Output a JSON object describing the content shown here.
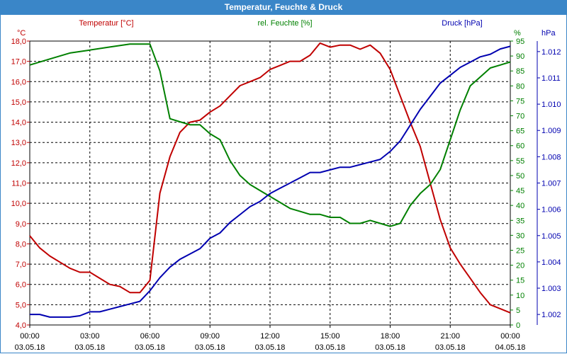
{
  "window": {
    "title": "Temperatur, Feuchte & Druck"
  },
  "colors": {
    "temperature": "#c00000",
    "humidity": "#008000",
    "pressure": "#0000b0",
    "title_bar": "#3a86c8",
    "grid": "#000000"
  },
  "chart_data": {
    "type": "line",
    "title": "Temperatur, Feuchte & Druck",
    "x_range": [
      "03.05.18 00:00",
      "04.05.18 00:00"
    ],
    "x_ticks": [
      {
        "time": "00:00",
        "date": "03.05.18"
      },
      {
        "time": "03:00",
        "date": "03.05.18"
      },
      {
        "time": "06:00",
        "date": "03.05.18"
      },
      {
        "time": "09:00",
        "date": "03.05.18"
      },
      {
        "time": "12:00",
        "date": "03.05.18"
      },
      {
        "time": "15:00",
        "date": "03.05.18"
      },
      {
        "time": "18:00",
        "date": "03.05.18"
      },
      {
        "time": "21:00",
        "date": "03.05.18"
      },
      {
        "time": "00:00",
        "date": "04.05.18"
      }
    ],
    "grid": true,
    "axes": {
      "temperature": {
        "label": "Temperatur [°C]",
        "unit": "°C",
        "position": "left",
        "range": [
          4.0,
          18.0
        ],
        "ticks": [
          "4,0",
          "5,0",
          "6,0",
          "7,0",
          "8,0",
          "9,0",
          "10,0",
          "11,0",
          "12,0",
          "13,0",
          "14,0",
          "15,0",
          "16,0",
          "17,0",
          "18,0"
        ]
      },
      "humidity": {
        "label": "rel. Feuchte [%]",
        "unit": "%",
        "position": "right",
        "range": [
          0,
          95
        ],
        "ticks": [
          "0",
          "5",
          "10",
          "15",
          "20",
          "25",
          "30",
          "35",
          "40",
          "45",
          "50",
          "55",
          "60",
          "65",
          "70",
          "75",
          "80",
          "85",
          "90",
          "95"
        ]
      },
      "pressure": {
        "label": "Druck [hPa]",
        "unit": "hPa",
        "position": "right-outer",
        "range": [
          1001.6,
          1012.4
        ],
        "ticks": [
          "1.002",
          "1.003",
          "1.004",
          "1.005",
          "1.006",
          "1.007",
          "1.008",
          "1.009",
          "1.010",
          "1.011",
          "1.012"
        ]
      }
    },
    "series": [
      {
        "name": "Temperatur [°C]",
        "axis": "temperature",
        "color": "#c00000",
        "x": [
          0,
          0.5,
          1,
          1.5,
          2,
          2.5,
          3,
          3.5,
          4,
          4.5,
          5,
          5.5,
          6,
          6.5,
          7,
          7.5,
          8,
          8.5,
          9,
          9.5,
          10,
          10.5,
          11,
          11.5,
          12,
          12.5,
          13,
          13.5,
          14,
          14.5,
          15,
          15.5,
          16,
          16.5,
          17,
          17.5,
          18,
          18.5,
          19,
          19.5,
          20,
          20.5,
          21,
          21.5,
          22,
          22.5,
          23,
          23.5,
          24
        ],
        "values": [
          8.4,
          7.8,
          7.4,
          7.1,
          6.8,
          6.6,
          6.6,
          6.3,
          6.0,
          5.9,
          5.6,
          5.6,
          6.2,
          10.5,
          12.3,
          13.5,
          14.0,
          14.1,
          14.5,
          14.8,
          15.3,
          15.8,
          16.0,
          16.2,
          16.6,
          16.8,
          17.0,
          17.0,
          17.3,
          17.9,
          17.7,
          17.8,
          17.8,
          17.6,
          17.8,
          17.4,
          16.6,
          15.3,
          14.0,
          12.8,
          11.0,
          9.2,
          7.8,
          7.0,
          6.3,
          5.6,
          5.0,
          4.8,
          4.6
        ]
      },
      {
        "name": "rel. Feuchte [%]",
        "axis": "humidity",
        "color": "#008000",
        "x": [
          0,
          1,
          2,
          3,
          4,
          5,
          6,
          6.5,
          7,
          7.5,
          8,
          8.5,
          9,
          9.5,
          10,
          10.5,
          11,
          11.5,
          12,
          12.5,
          13,
          13.5,
          14,
          14.5,
          15,
          15.5,
          16,
          16.5,
          17,
          17.5,
          18,
          18.5,
          19,
          19.5,
          20,
          20.5,
          21,
          21.5,
          22,
          22.5,
          23,
          23.5,
          24
        ],
        "values": [
          87,
          89,
          91,
          92,
          93,
          94,
          94,
          85,
          69,
          68,
          67,
          67,
          64,
          62,
          55,
          50,
          47,
          45,
          43,
          41,
          39,
          38,
          37,
          37,
          36,
          36,
          34,
          34,
          35,
          34,
          33,
          34,
          40,
          44,
          47,
          52,
          62,
          72,
          80,
          83,
          86,
          87,
          88
        ]
      },
      {
        "name": "Druck [hPa]",
        "axis": "pressure",
        "color": "#0000b0",
        "x": [
          0,
          0.5,
          1,
          1.5,
          2,
          2.5,
          3,
          3.5,
          4,
          4.5,
          5,
          5.5,
          6,
          6.5,
          7,
          7.5,
          8,
          8.5,
          9,
          9.5,
          10,
          10.5,
          11,
          11.5,
          12,
          12.5,
          13,
          13.5,
          14,
          14.5,
          15,
          15.5,
          16,
          16.5,
          17,
          17.5,
          18,
          18.5,
          19,
          19.5,
          20,
          20.5,
          21,
          21.5,
          22,
          22.5,
          23,
          23.5,
          24
        ],
        "values": [
          1002.0,
          1002.0,
          1001.9,
          1001.9,
          1001.9,
          1001.95,
          1002.1,
          1002.1,
          1002.2,
          1002.3,
          1002.4,
          1002.5,
          1002.9,
          1003.4,
          1003.8,
          1004.1,
          1004.3,
          1004.5,
          1004.9,
          1005.1,
          1005.5,
          1005.8,
          1006.1,
          1006.3,
          1006.6,
          1006.8,
          1007.0,
          1007.2,
          1007.4,
          1007.4,
          1007.5,
          1007.6,
          1007.6,
          1007.7,
          1007.8,
          1007.9,
          1008.2,
          1008.6,
          1009.2,
          1009.8,
          1010.3,
          1010.8,
          1011.1,
          1011.4,
          1011.6,
          1011.8,
          1011.9,
          1012.1,
          1012.2
        ]
      }
    ]
  }
}
